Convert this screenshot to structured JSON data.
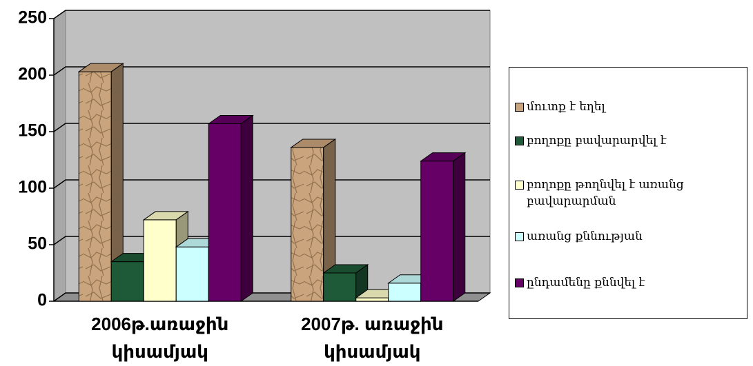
{
  "chart_data": {
    "type": "bar3d",
    "categories": [
      "2006թ.առաջին կիսամյակ",
      "2007թ. առաջին կիսամյակ"
    ],
    "series": [
      {
        "name": "մուտք է եղել",
        "color": "#c9a47c",
        "values": [
          203,
          136
        ]
      },
      {
        "name": "բողոքը բավարարվել է",
        "color": "#1f5a38",
        "values": [
          35,
          25
        ]
      },
      {
        "name": "բողոքը թողնվել է առանց բավարարման",
        "color": "#ffffcc",
        "values": [
          72,
          3
        ]
      },
      {
        "name": "առանց քննության",
        "color": "#ccffff",
        "values": [
          48,
          16
        ]
      },
      {
        "name": "ընդամենը քննվել է",
        "color": "#660066",
        "values": [
          157,
          124
        ]
      }
    ],
    "ylim": [
      0,
      250
    ],
    "yticks": [
      0,
      50,
      100,
      150,
      200,
      250
    ],
    "grid": true
  }
}
